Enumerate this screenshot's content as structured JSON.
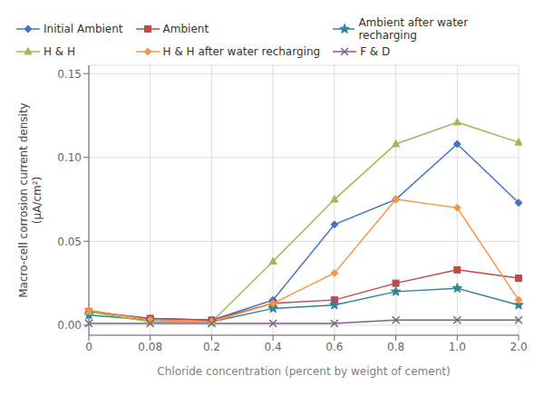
{
  "chart_data": {
    "type": "line",
    "categories": [
      "0",
      "0.08",
      "0.2",
      "0.4",
      "0.6",
      "0.8",
      "1.0",
      "2.0"
    ],
    "series": [
      {
        "name": "Initial Ambient",
        "color": "#4472C4",
        "marker": "diamond",
        "values": [
          0.008,
          0.004,
          0.003,
          0.015,
          0.06,
          0.075,
          0.108,
          0.073
        ]
      },
      {
        "name": "Ambient",
        "color": "#BE4B48",
        "marker": "square",
        "values": [
          0.008,
          0.004,
          0.003,
          0.013,
          0.015,
          0.025,
          0.033,
          0.028
        ]
      },
      {
        "name": "Ambient after water recharging",
        "color": "#31849B",
        "marker": "star",
        "values": [
          0.006,
          0.003,
          0.002,
          0.01,
          0.012,
          0.02,
          0.022,
          0.012
        ]
      },
      {
        "name": "H & H",
        "color": "#9BBB59",
        "marker": "triangle",
        "values": [
          0.008,
          0.002,
          0.002,
          0.038,
          0.075,
          0.108,
          0.121,
          0.109
        ]
      },
      {
        "name": "H & H after water recharging",
        "color": "#F79646",
        "marker": "diamond",
        "values": [
          0.009,
          0.003,
          0.002,
          0.013,
          0.031,
          0.075,
          0.07,
          0.015
        ]
      },
      {
        "name": "F & D",
        "color": "#7F6084",
        "marker": "x",
        "values": [
          0.001,
          0.001,
          0.001,
          0.001,
          0.001,
          0.003,
          0.003,
          0.003
        ]
      }
    ],
    "xlabel": "Chloride concentration (percent by weight of cement)",
    "ylabel": "Macro-cell corrosion current density\n(μA/cm²)",
    "ylim": [
      -0.006,
      0.155
    ],
    "yticks": [
      {
        "value": 0,
        "label": "0.00"
      },
      0.05,
      {
        "value": 0.1,
        "label": "0.10"
      },
      0.15
    ],
    "grid": true,
    "legend": "top"
  }
}
